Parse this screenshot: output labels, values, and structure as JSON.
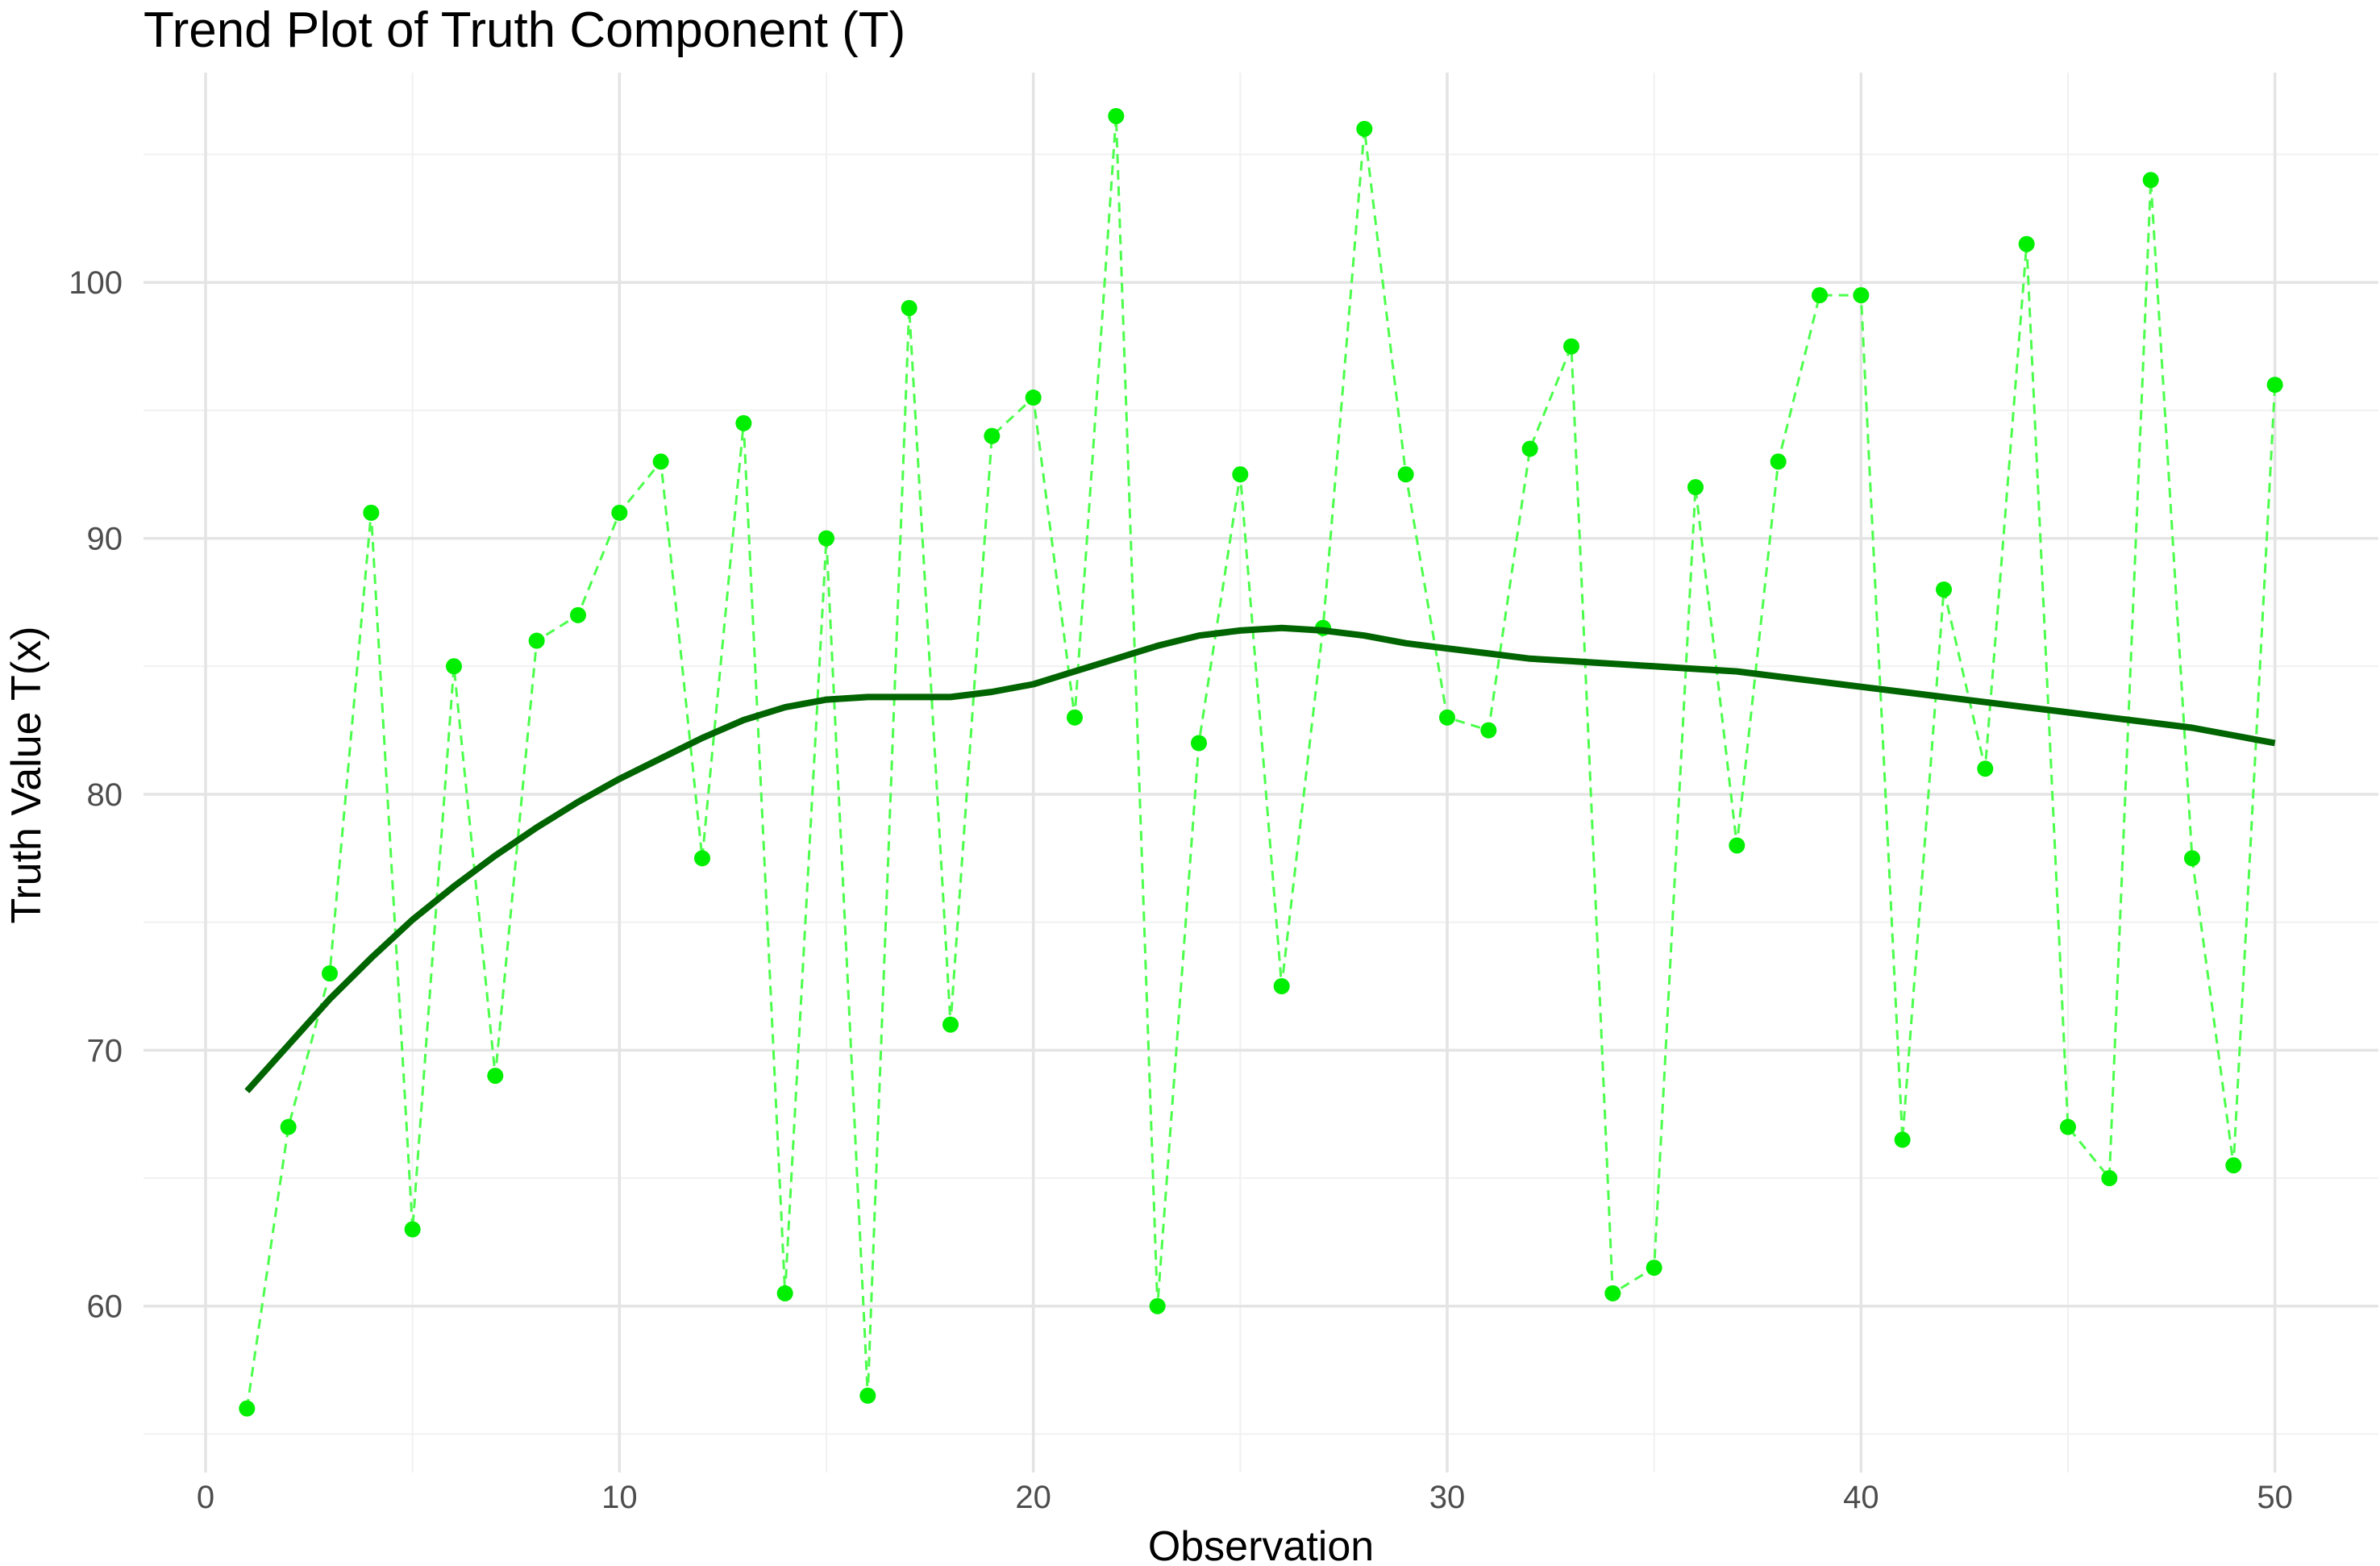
{
  "chart_data": {
    "type": "line",
    "title": "Trend Plot of Truth Component (T)",
    "xlabel": "Observation",
    "ylabel": "Truth Value T(x)",
    "xlim": [
      -1.5,
      52.5
    ],
    "ylim": [
      53.5,
      108.2
    ],
    "x_ticks": [
      0,
      10,
      20,
      30,
      40,
      50
    ],
    "y_ticks": [
      60,
      70,
      80,
      90,
      100
    ],
    "x_tick_labels": [
      "0",
      "10",
      "20",
      "30",
      "40",
      "50"
    ],
    "y_tick_labels": [
      "60",
      "70",
      "80",
      "90",
      "100"
    ],
    "grid": true,
    "legend": "none",
    "series": [
      {
        "style": "dashed line with points",
        "color": "#00ee00",
        "line_color": "#4cff4c",
        "x": [
          1,
          2,
          3,
          4,
          5,
          6,
          7,
          8,
          9,
          10,
          11,
          12,
          13,
          14,
          15,
          16,
          17,
          18,
          19,
          20,
          21,
          22,
          23,
          24,
          25,
          26,
          27,
          28,
          29,
          30,
          31,
          32,
          33,
          34,
          35,
          36,
          37,
          38,
          39,
          40,
          41,
          42,
          43,
          44,
          45,
          46,
          47,
          48,
          49,
          50
        ],
        "y": [
          56,
          67,
          73,
          91,
          63,
          85,
          69,
          86,
          87,
          91,
          93,
          77.5,
          94.5,
          60.5,
          90,
          56.5,
          99,
          71,
          94,
          95.5,
          83,
          106.5,
          60,
          82,
          92.5,
          72.5,
          86.5,
          106,
          92.5,
          83,
          82.5,
          93.5,
          97.5,
          60.5,
          61.5,
          92,
          78,
          93,
          99.5,
          99.5,
          66.5,
          88,
          81,
          101.5,
          67,
          65,
          104,
          77.5,
          65.5,
          96
        ]
      },
      {
        "style": "smoothed trend line",
        "color": "#006400",
        "x": [
          1,
          2,
          3,
          4,
          5,
          6,
          7,
          8,
          9,
          10,
          11,
          12,
          13,
          14,
          15,
          16,
          17,
          18,
          19,
          20,
          21,
          22,
          23,
          24,
          25,
          26,
          27,
          28,
          29,
          30,
          31,
          32,
          33,
          34,
          35,
          36,
          37,
          38,
          39,
          40,
          41,
          42,
          43,
          44,
          45,
          46,
          47,
          48,
          49,
          50
        ],
        "y": [
          68.4,
          70.2,
          72.0,
          73.6,
          75.1,
          76.4,
          77.6,
          78.7,
          79.7,
          80.6,
          81.4,
          82.2,
          82.9,
          83.4,
          83.7,
          83.8,
          83.8,
          83.8,
          84.0,
          84.3,
          84.8,
          85.3,
          85.8,
          86.2,
          86.4,
          86.5,
          86.4,
          86.2,
          85.9,
          85.7,
          85.5,
          85.3,
          85.2,
          85.1,
          85.0,
          84.9,
          84.8,
          84.6,
          84.4,
          84.2,
          84.0,
          83.8,
          83.6,
          83.4,
          83.2,
          83.0,
          82.8,
          82.6,
          82.3,
          82.0
        ]
      }
    ]
  }
}
